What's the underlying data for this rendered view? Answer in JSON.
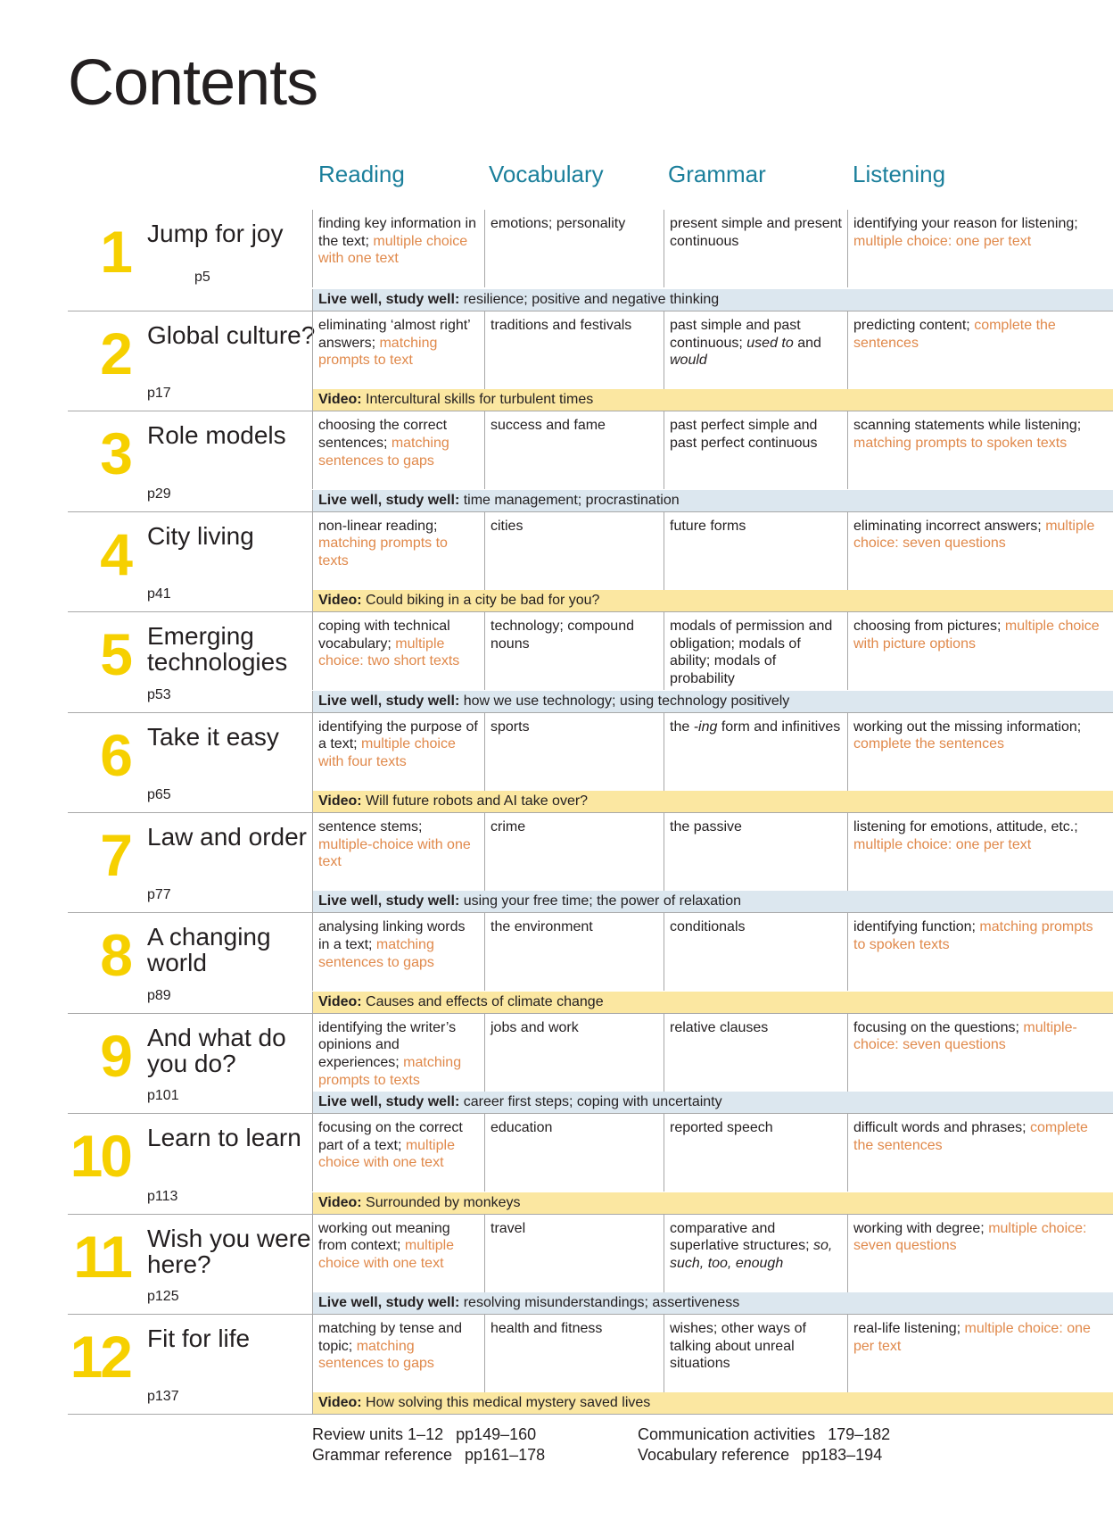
{
  "title": "Contents",
  "columns": [
    "Reading",
    "Vocabulary",
    "Grammar",
    "Listening"
  ],
  "colors": {
    "heading": "#1b7f9b",
    "task": "#e0894b",
    "unit_number": "#f6d000",
    "live_band": "#dce7ef",
    "video_band": "#fbe7a1"
  },
  "units": [
    {
      "num": "1",
      "title": "Jump for joy",
      "page": "p5",
      "reading": [
        {
          "t": "finding key information in the text; "
        },
        {
          "t": "multiple choice with one text",
          "s": "task"
        }
      ],
      "vocabulary": [
        {
          "t": "emotions; personality"
        }
      ],
      "grammar": [
        {
          "t": "present simple and present continuous"
        }
      ],
      "listening": [
        {
          "t": "identifying your reason for listening; "
        },
        {
          "t": "multiple choice: one per text",
          "s": "task"
        }
      ],
      "band": {
        "type": "live",
        "label": "Live well, study well:",
        "text": " resilience; positive and negative thinking"
      }
    },
    {
      "num": "2",
      "title": "Global culture?",
      "page": "p17",
      "reading": [
        {
          "t": "eliminating ‘almost right’ answers; "
        },
        {
          "t": "matching prompts to text",
          "s": "task"
        }
      ],
      "vocabulary": [
        {
          "t": "traditions and festivals"
        }
      ],
      "grammar": [
        {
          "t": "past simple and past continuous; "
        },
        {
          "t": "used to",
          "s": "it"
        },
        {
          "t": " and "
        },
        {
          "t": "would",
          "s": "it"
        }
      ],
      "listening": [
        {
          "t": "predicting content; "
        },
        {
          "t": "complete the sentences",
          "s": "task"
        }
      ],
      "band": {
        "type": "video",
        "label": "Video:",
        "text": " Intercultural skills for turbulent times"
      }
    },
    {
      "num": "3",
      "title": "Role models",
      "page": "p29",
      "reading": [
        {
          "t": "choosing the correct sentences; "
        },
        {
          "t": "matching sentences to gaps",
          "s": "task"
        }
      ],
      "vocabulary": [
        {
          "t": "success and fame"
        }
      ],
      "grammar": [
        {
          "t": "past perfect simple and past perfect continuous"
        }
      ],
      "listening": [
        {
          "t": "scanning statements while listening; "
        },
        {
          "t": "matching prompts to spoken texts",
          "s": "task"
        }
      ],
      "band": {
        "type": "live",
        "label": "Live well, study well:",
        "text": " time management; procrastination"
      }
    },
    {
      "num": "4",
      "title": "City living",
      "page": "p41",
      "reading": [
        {
          "t": "non-linear reading; "
        },
        {
          "t": "matching prompts to texts",
          "s": "task"
        }
      ],
      "vocabulary": [
        {
          "t": "cities"
        }
      ],
      "grammar": [
        {
          "t": "future forms"
        }
      ],
      "listening": [
        {
          "t": "eliminating incorrect answers; "
        },
        {
          "t": "multiple choice: seven questions",
          "s": "task"
        }
      ],
      "band": {
        "type": "video",
        "label": "Video:",
        "text": " Could biking in a city be bad for you?"
      }
    },
    {
      "num": "5",
      "title": "Emerging technologies",
      "page": "p53",
      "reading": [
        {
          "t": "coping with technical vocabulary; "
        },
        {
          "t": "multiple choice: two short texts",
          "s": "task"
        }
      ],
      "vocabulary": [
        {
          "t": "technology; compound nouns"
        }
      ],
      "grammar": [
        {
          "t": "modals of permission and obligation; modals of ability; modals of probability"
        }
      ],
      "listening": [
        {
          "t": "choosing from pictures; "
        },
        {
          "t": "multiple choice with picture options",
          "s": "task"
        }
      ],
      "band": {
        "type": "live",
        "label": "Live well, study well:",
        "text": " how we use technology; using technology positively"
      }
    },
    {
      "num": "6",
      "title": "Take it easy",
      "page": "p65",
      "reading": [
        {
          "t": "identifying the purpose of a text; "
        },
        {
          "t": "multiple choice with four texts",
          "s": "task"
        }
      ],
      "vocabulary": [
        {
          "t": "sports"
        }
      ],
      "grammar": [
        {
          "t": "the "
        },
        {
          "t": "-ing",
          "s": "it"
        },
        {
          "t": " form and infinitives"
        }
      ],
      "listening": [
        {
          "t": "working out the missing information; "
        },
        {
          "t": "complete the sentences",
          "s": "task"
        }
      ],
      "band": {
        "type": "video",
        "label": "Video:",
        "text": " Will future robots and AI take over?"
      }
    },
    {
      "num": "7",
      "title": "Law and order",
      "page": "p77",
      "reading": [
        {
          "t": "sentence stems; "
        },
        {
          "t": "multiple-choice with one text",
          "s": "task"
        }
      ],
      "vocabulary": [
        {
          "t": "crime"
        }
      ],
      "grammar": [
        {
          "t": "the passive"
        }
      ],
      "listening": [
        {
          "t": "listening for emotions, attitude, etc.; "
        },
        {
          "t": "multiple choice: one per text",
          "s": "task"
        }
      ],
      "band": {
        "type": "live",
        "label": "Live well, study well:",
        "text": " using your free time; the power of relaxation"
      }
    },
    {
      "num": "8",
      "title": "A changing world",
      "page": "p89",
      "reading": [
        {
          "t": "analysing linking words in a text; "
        },
        {
          "t": "matching sentences to gaps",
          "s": "task"
        }
      ],
      "vocabulary": [
        {
          "t": "the environment"
        }
      ],
      "grammar": [
        {
          "t": "conditionals"
        }
      ],
      "listening": [
        {
          "t": "identifying function; "
        },
        {
          "t": "matching prompts to spoken texts",
          "s": "task"
        }
      ],
      "band": {
        "type": "video",
        "label": "Video:",
        "text": " Causes and effects of climate change"
      }
    },
    {
      "num": "9",
      "title": "And what do you do?",
      "page": "p101",
      "reading": [
        {
          "t": "identifying the writer’s opinions and experiences; "
        },
        {
          "t": "matching prompts to texts",
          "s": "task"
        }
      ],
      "vocabulary": [
        {
          "t": "jobs and work"
        }
      ],
      "grammar": [
        {
          "t": "relative clauses"
        }
      ],
      "listening": [
        {
          "t": "focusing on the questions; "
        },
        {
          "t": "multiple-choice: seven questions",
          "s": "task"
        }
      ],
      "band": {
        "type": "live",
        "label": "Live well, study well:",
        "text": " career first steps; coping with uncertainty"
      }
    },
    {
      "num": "10",
      "title": "Learn to learn",
      "page": "p113",
      "reading": [
        {
          "t": "focusing on the correct part of a text; "
        },
        {
          "t": "multiple choice with one text",
          "s": "task"
        }
      ],
      "vocabulary": [
        {
          "t": "education"
        }
      ],
      "grammar": [
        {
          "t": "reported speech"
        }
      ],
      "listening": [
        {
          "t": "difficult words and phrases; "
        },
        {
          "t": "complete the sentences",
          "s": "task"
        }
      ],
      "band": {
        "type": "video",
        "label": "Video:",
        "text": " Surrounded by monkeys"
      }
    },
    {
      "num": "11",
      "title": "Wish you were here?",
      "page": "p125",
      "reading": [
        {
          "t": "working out meaning from context; "
        },
        {
          "t": "multiple choice with one text",
          "s": "task"
        }
      ],
      "vocabulary": [
        {
          "t": "travel"
        }
      ],
      "grammar": [
        {
          "t": "comparative and superlative structures; "
        },
        {
          "t": "so, such, too, enough",
          "s": "it"
        }
      ],
      "listening": [
        {
          "t": "working with degree; "
        },
        {
          "t": "multiple choice: seven questions",
          "s": "task"
        }
      ],
      "band": {
        "type": "live",
        "label": "Live well, study well:",
        "text": " resolving misunderstandings; assertiveness"
      }
    },
    {
      "num": "12",
      "title": "Fit for life",
      "page": "p137",
      "reading": [
        {
          "t": "matching by tense and topic; "
        },
        {
          "t": "matching sentences to gaps",
          "s": "task"
        }
      ],
      "vocabulary": [
        {
          "t": "health and fitness"
        }
      ],
      "grammar": [
        {
          "t": "wishes; other ways of talking about unreal situations"
        }
      ],
      "listening": [
        {
          "t": "real-life listening; "
        },
        {
          "t": "multiple choice: one per text",
          "s": "task"
        }
      ],
      "band": {
        "type": "video",
        "label": "Video:",
        "text": " How solving this medical mystery saved lives"
      }
    }
  ],
  "footer": {
    "left": [
      {
        "label": "Review units 1–12",
        "pages": "pp149–160"
      },
      {
        "label": "Grammar reference",
        "pages": "pp161–178"
      }
    ],
    "right": [
      {
        "label": "Communication activities",
        "pages": "179–182"
      },
      {
        "label": "Vocabulary reference",
        "pages": "pp183–194"
      }
    ]
  }
}
